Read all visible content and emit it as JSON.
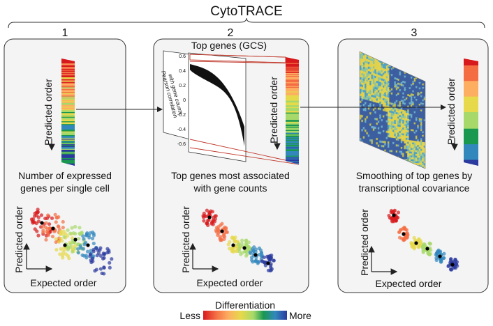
{
  "title": "CytoTRACE",
  "steps": [
    {
      "number": "1",
      "ylabel": "Predicted order",
      "caption_lines": [
        "Number of expressed",
        "genes per single cell"
      ],
      "scatter_ylabel": "Predicted order",
      "scatter_xlabel": "Expected order"
    },
    {
      "number": "2",
      "panel_title": "Top genes (GCS)",
      "corr_axis_label_lines": [
        "Pearson correlation",
        "with gene counts"
      ],
      "corr_ticks": [
        "0.6",
        "0.4",
        "0.2",
        "0",
        "-0.2",
        "-0.4",
        "-0.6"
      ],
      "ylabel": "Predicted order",
      "caption_lines": [
        "Top genes most associated",
        "with gene counts"
      ],
      "scatter_ylabel": "Predicted order",
      "scatter_xlabel": "Expected order"
    },
    {
      "number": "3",
      "ylabel": "Predicted order",
      "caption_lines": [
        "Smoothing of top genes by",
        "transcriptional covariance"
      ],
      "scatter_ylabel": "Predicted order",
      "scatter_xlabel": "Expected order"
    }
  ],
  "legend": {
    "title": "Differentiation",
    "low": "Less",
    "high": "More",
    "colors": [
      "#d7191c",
      "#f46d43",
      "#fdae61",
      "#e6d94a",
      "#a6d96a",
      "#1a9850",
      "#3288bd",
      "#2b3a9e"
    ]
  },
  "colors": {
    "panel_bg": "#f4f4f4",
    "panel_border": "#333333",
    "accent_red": "#c0392b"
  }
}
